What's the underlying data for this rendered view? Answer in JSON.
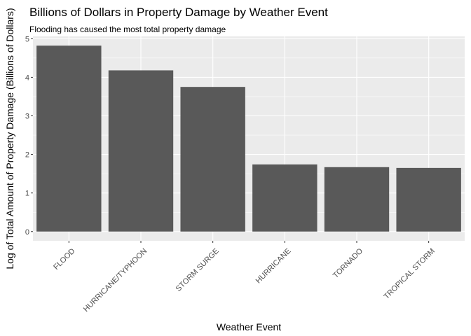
{
  "chart_data": {
    "type": "bar",
    "title": "Billions of Dollars in Property Damage by Weather Event",
    "subtitle": "Flooding has caused the most total property damage",
    "xlabel": "Weather Event",
    "ylabel": "Log of Total Amount of Property Damage (Billions of Dollars)",
    "categories": [
      "FLOOD",
      "HURRICANE/TYPHOON",
      "STORM SURGE",
      "HURRICANE",
      "TORNADO",
      "TROPICAL STORM"
    ],
    "values": [
      4.82,
      4.18,
      3.75,
      1.74,
      1.67,
      1.65
    ],
    "yticks": [
      0,
      1,
      2,
      3,
      4,
      5
    ],
    "ylim": [
      -0.24,
      5.06
    ],
    "grid": true,
    "colors": {
      "bar": "#595959",
      "panel": "#ebebeb",
      "grid": "#ffffff"
    }
  }
}
